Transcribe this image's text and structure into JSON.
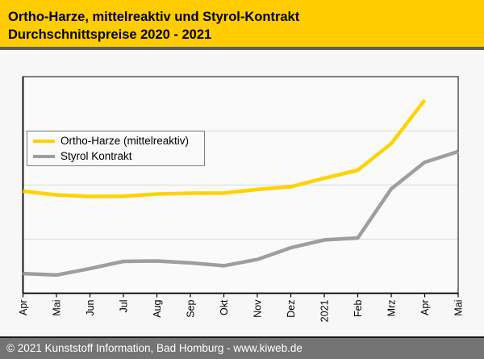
{
  "header": {
    "title_line1": "Ortho-Harze, mittelreaktiv und Styrol-Kontrakt",
    "title_line2": "Durchschnittspreise 2020 - 2021"
  },
  "footer": {
    "text": "© 2021 Kunststoff Information, Bad Homburg - www.kiweb.de"
  },
  "colors": {
    "header_bg": "#ffcc00",
    "header_text": "#000000",
    "divider": "#5e5e5e",
    "page_bg": "#f7f7f7",
    "plot_bg": "#fafafa",
    "axis": "#000000",
    "gridline": "#d9d9d9",
    "legend_border": "#7f7f7f",
    "footer_bg": "#747474",
    "footer_text": "#ffffff",
    "series_ortho_harze": "#ffd200",
    "series_styrol": "#9e9e9e"
  },
  "chart_data": {
    "type": "line",
    "title": "Ortho-Harze, mittelreaktiv und Styrol-Kontrakt Durchschnittspreise 2020 - 2021",
    "categories": [
      "Apr",
      "Mai",
      "Jun",
      "Jul",
      "Aug",
      "Sep",
      "Okt",
      "Nov",
      "Dez",
      "2021",
      "Feb",
      "Mrz",
      "Apr",
      "Mai"
    ],
    "series": [
      {
        "name": "Ortho-Harze (mittelreaktiv)",
        "color": "#ffd200",
        "values": [
          47.1,
          45.4,
          44.7,
          44.8,
          45.8,
          46.2,
          46.3,
          47.9,
          49.2,
          53.1,
          56.8,
          69.1,
          89.2,
          null
        ]
      },
      {
        "name": "Styrol Kontrakt",
        "color": "#9e9e9e",
        "values": [
          9.1,
          8.4,
          11.4,
          14.7,
          14.9,
          14.0,
          12.7,
          15.6,
          21.0,
          24.6,
          25.5,
          48.2,
          60.5,
          65.4
        ]
      }
    ],
    "xlabel": "",
    "ylabel": "",
    "ylim": [
      0,
      100
    ],
    "gridline_values": [
      25,
      50,
      75
    ],
    "y_axis_labels_visible": false,
    "grid": "horizontal",
    "legend_position": "top-left"
  }
}
